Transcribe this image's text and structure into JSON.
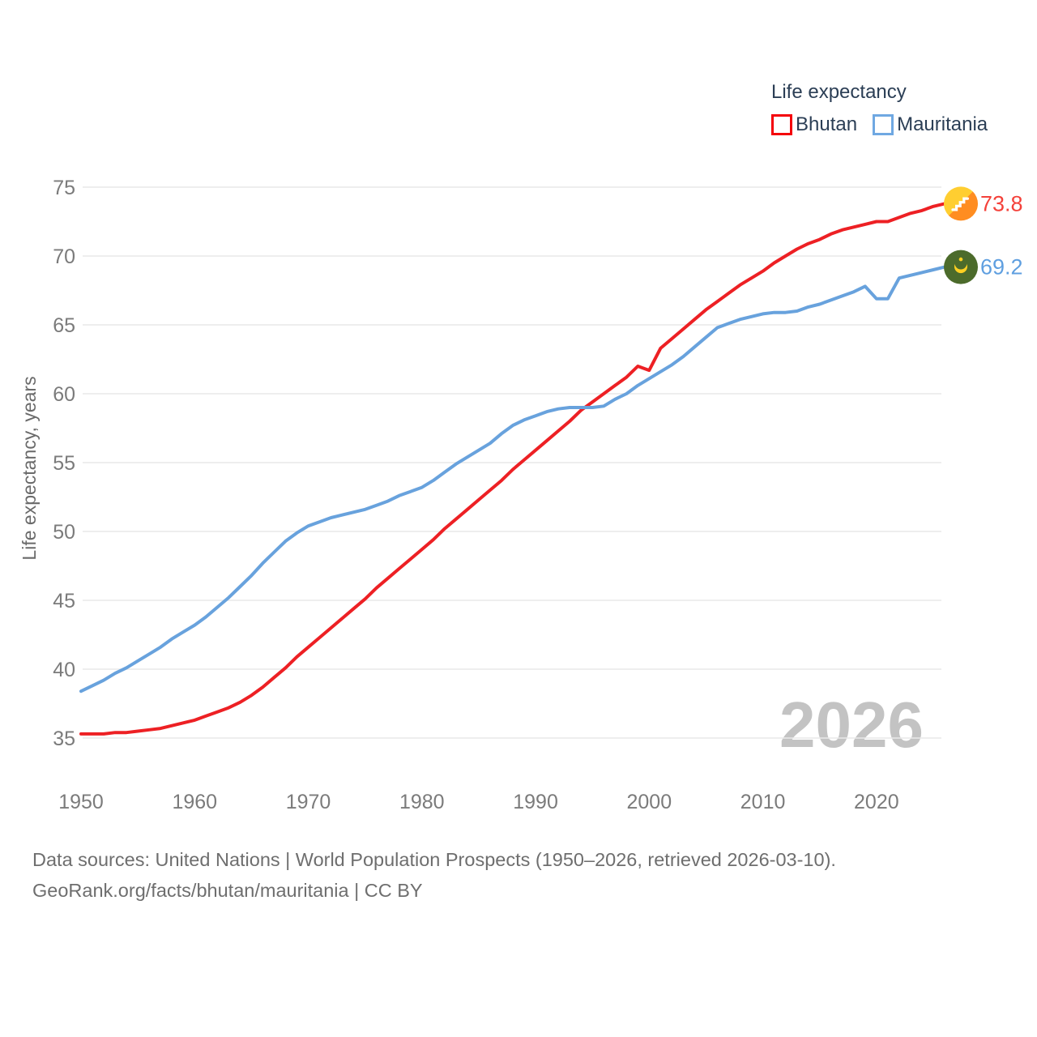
{
  "legend": {
    "title": "Life expectancy",
    "items": [
      "Bhutan",
      "Mauritania"
    ]
  },
  "source": {
    "line1": "Data sources: United Nations | World Population Prospects (1950–2026, retrieved 2026-03-10).",
    "line2": "GeoRank.org/facts/bhutan/mauritania | CC BY"
  },
  "colors": {
    "bhutan_line": "#ed2024",
    "bhutan_label": "#f4413a",
    "bhutan_swatch": "#f40009",
    "mauritania_line": "#68a2dd",
    "mauritania_label": "#5f9fe0",
    "mauritania_swatch": "#6fa8e2",
    "legend_text": "#2b3e55",
    "axis_text": "#7b7b7b",
    "grid": "#e9e9e9",
    "watermark": "#c3c3c3",
    "source_text": "#6e6e6e",
    "bhutan_flag_yellow": "#ffce31",
    "bhutan_flag_orange": "#ff8d21",
    "bhutan_flag_dragon": "#ffffff",
    "mauritania_flag_green": "#4c6b2b",
    "mauritania_flag_gold": "#ffd021"
  },
  "chart_data": {
    "type": "line",
    "title": "Life expectancy",
    "ylabel": "Life expectancy, years",
    "watermark": "2026",
    "x_start": 1950,
    "x_end": 2026,
    "x_step": 1,
    "xticks": [
      1950,
      1960,
      1970,
      1980,
      1990,
      2000,
      2010,
      2020
    ],
    "yticks": [
      35,
      40,
      45,
      50,
      55,
      60,
      65,
      70,
      75
    ],
    "ylim": [
      33,
      77
    ],
    "grid": "horizontal",
    "legend_position": "top-right",
    "series": [
      {
        "name": "Bhutan",
        "color": "#ed2024",
        "label_color": "#f4413a",
        "flag": "bhutan-flag-icon",
        "end_label": "73.8",
        "values": [
          35.3,
          35.3,
          35.3,
          35.4,
          35.4,
          35.5,
          35.6,
          35.7,
          35.9,
          36.1,
          36.3,
          36.6,
          36.9,
          37.2,
          37.6,
          38.1,
          38.7,
          39.4,
          40.1,
          40.9,
          41.6,
          42.3,
          43.0,
          43.7,
          44.4,
          45.1,
          45.9,
          46.6,
          47.3,
          48.0,
          48.7,
          49.4,
          50.2,
          50.9,
          51.6,
          52.3,
          53.0,
          53.7,
          54.5,
          55.2,
          55.9,
          56.6,
          57.3,
          58.0,
          58.8,
          59.4,
          60.0,
          60.6,
          61.2,
          62.0,
          61.7,
          63.3,
          64.0,
          64.7,
          65.4,
          66.1,
          66.7,
          67.3,
          67.9,
          68.4,
          68.9,
          69.5,
          70.0,
          70.5,
          70.9,
          71.2,
          71.6,
          71.9,
          72.1,
          72.3,
          72.5,
          72.5,
          72.8,
          73.1,
          73.3,
          73.6,
          73.8
        ]
      },
      {
        "name": "Mauritania",
        "color": "#68a2dd",
        "label_color": "#5f9fe0",
        "flag": "mauritania-flag-icon",
        "end_label": "69.2",
        "values": [
          38.4,
          38.8,
          39.2,
          39.7,
          40.1,
          40.6,
          41.1,
          41.6,
          42.2,
          42.7,
          43.2,
          43.8,
          44.5,
          45.2,
          46.0,
          46.8,
          47.7,
          48.5,
          49.3,
          49.9,
          50.4,
          50.7,
          51.0,
          51.2,
          51.4,
          51.6,
          51.9,
          52.2,
          52.6,
          52.9,
          53.2,
          53.7,
          54.3,
          54.9,
          55.4,
          55.9,
          56.4,
          57.1,
          57.7,
          58.1,
          58.4,
          58.7,
          58.9,
          59.0,
          59.0,
          59.0,
          59.1,
          59.6,
          60.0,
          60.6,
          61.1,
          61.6,
          62.1,
          62.7,
          63.4,
          64.1,
          64.8,
          65.1,
          65.4,
          65.6,
          65.8,
          65.9,
          65.9,
          66.0,
          66.3,
          66.5,
          66.8,
          67.1,
          67.4,
          67.8,
          66.9,
          66.9,
          68.4,
          68.6,
          68.8,
          69.0,
          69.2
        ]
      }
    ]
  }
}
